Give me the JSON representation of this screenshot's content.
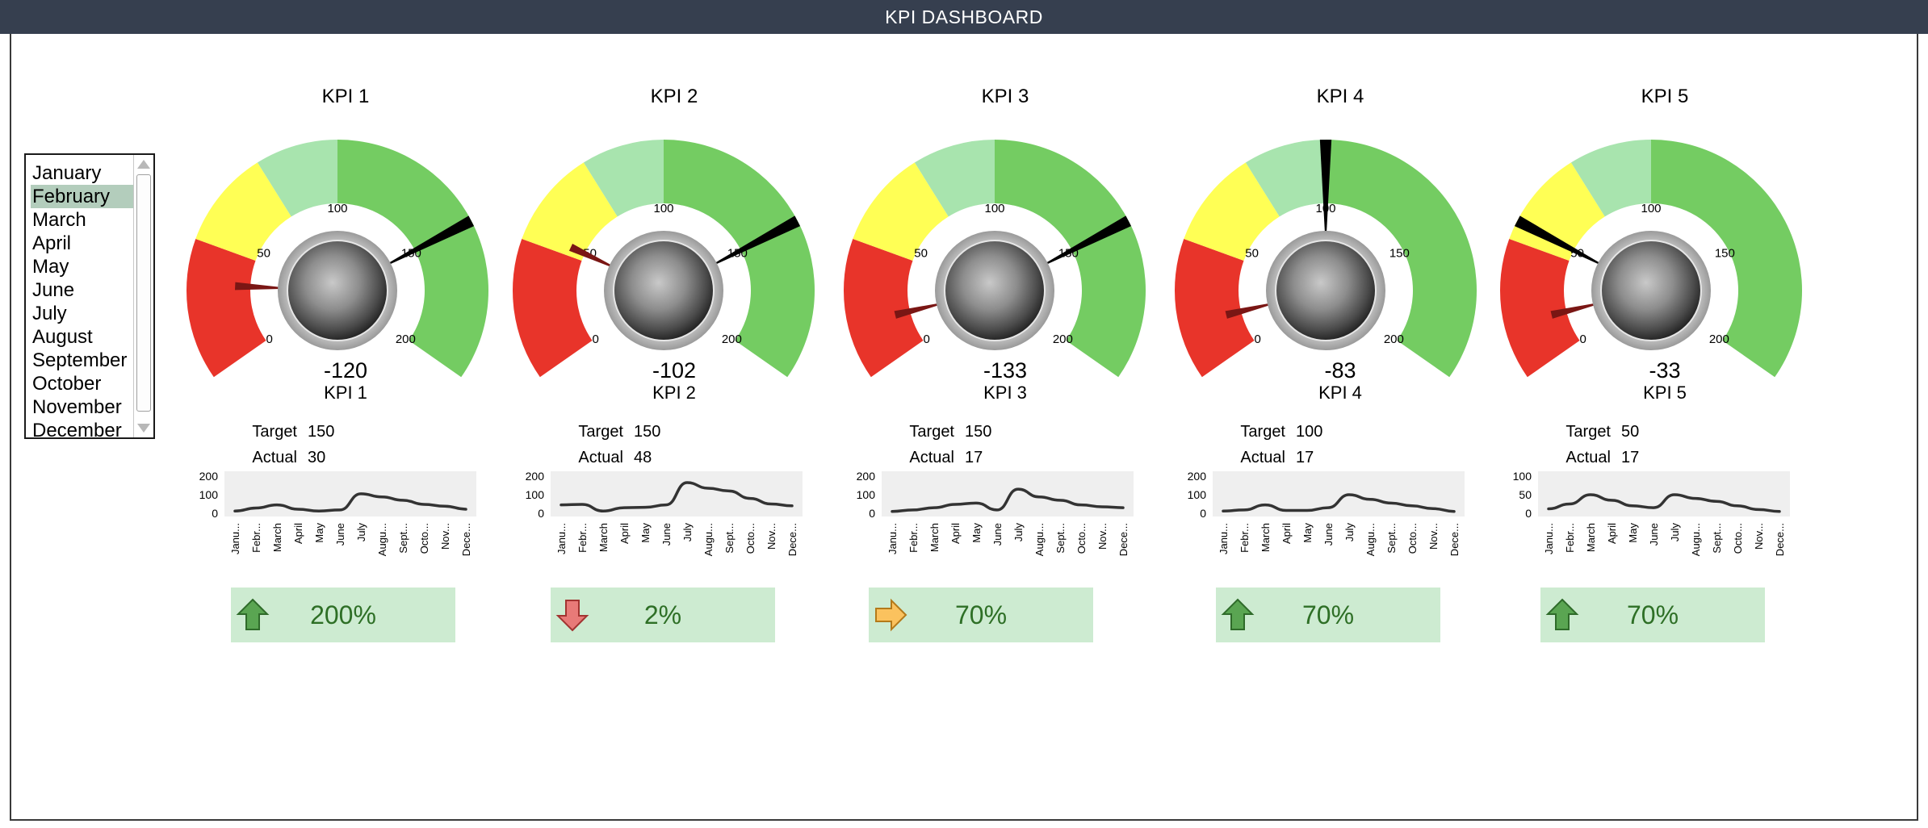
{
  "header": {
    "title": "KPI DASHBOARD"
  },
  "colors": {
    "header_bg": "#363f4f",
    "gauge_red": "#e8342a",
    "gauge_yellow": "#ffff55",
    "gauge_lightgreen": "#a8e4ae",
    "gauge_green": "#74cc62",
    "target_needle": "#000000",
    "actual_needle": "#7a1614",
    "pct_box_bg": "#cdebd1",
    "pct_text": "#2e6f26",
    "selection": "#b3cdbc"
  },
  "month_list": {
    "items": [
      "January",
      "February",
      "March",
      "April",
      "May",
      "June",
      "July",
      "August",
      "September",
      "October",
      "November",
      "December"
    ],
    "selected": "February"
  },
  "labels": {
    "target": "Target",
    "actual": "Actual"
  },
  "kpis": [
    {
      "title": "KPI 1",
      "value": "-120",
      "label": "KPI 1",
      "target": "150",
      "actual": "30",
      "pct": "200%",
      "arrow": "up-arrow",
      "gauge": {
        "max": 200,
        "ticks": [
          0,
          50,
          100,
          150,
          200
        ],
        "target": 150,
        "actual": 30
      },
      "spark": {
        "y_ticks": [
          0,
          100,
          200
        ],
        "ymax": 200,
        "values": [
          12,
          28,
          45,
          22,
          12,
          18,
          105,
          88,
          70,
          48,
          38,
          22
        ]
      }
    },
    {
      "title": "KPI 2",
      "value": "-102",
      "label": "KPI 2",
      "target": "150",
      "actual": "48",
      "pct": "2%",
      "arrow": "down-arrow",
      "gauge": {
        "max": 200,
        "ticks": [
          0,
          50,
          100,
          150,
          200
        ],
        "target": 150,
        "actual": 48
      },
      "spark": {
        "y_ticks": [
          0,
          100,
          200
        ],
        "ymax": 200,
        "values": [
          45,
          48,
          12,
          30,
          32,
          45,
          165,
          135,
          120,
          80,
          50,
          40
        ]
      }
    },
    {
      "title": "KPI 3",
      "value": "-133",
      "label": "KPI 3",
      "target": "150",
      "actual": "17",
      "pct": "70%",
      "arrow": "right-arrow",
      "gauge": {
        "max": 200,
        "ticks": [
          0,
          50,
          100,
          150,
          200
        ],
        "target": 150,
        "actual": 17
      },
      "spark": {
        "y_ticks": [
          0,
          100,
          200
        ],
        "ymax": 200,
        "values": [
          10,
          18,
          30,
          48,
          55,
          18,
          130,
          88,
          70,
          45,
          35,
          30
        ]
      }
    },
    {
      "title": "KPI 4",
      "value": "-83",
      "label": "KPI 4",
      "target": "100",
      "actual": "17",
      "pct": "70%",
      "arrow": "up-arrow",
      "gauge": {
        "max": 200,
        "ticks": [
          0,
          50,
          100,
          150,
          200
        ],
        "target": 100,
        "actual": 17
      },
      "spark": {
        "y_ticks": [
          0,
          100,
          200
        ],
        "ymax": 200,
        "values": [
          12,
          18,
          45,
          15,
          15,
          30,
          100,
          75,
          55,
          40,
          25,
          10
        ]
      }
    },
    {
      "title": "KPI 5",
      "value": "-33",
      "label": "KPI 5",
      "target": "50",
      "actual": "17",
      "pct": "70%",
      "arrow": "up-arrow",
      "gauge": {
        "max": 200,
        "ticks": [
          0,
          50,
          100,
          150,
          200
        ],
        "target": 50,
        "actual": 17
      },
      "spark": {
        "y_ticks": [
          0,
          50,
          100
        ],
        "ymax": 100,
        "values": [
          12,
          25,
          50,
          35,
          20,
          15,
          50,
          40,
          32,
          20,
          10,
          5
        ]
      }
    }
  ]
}
